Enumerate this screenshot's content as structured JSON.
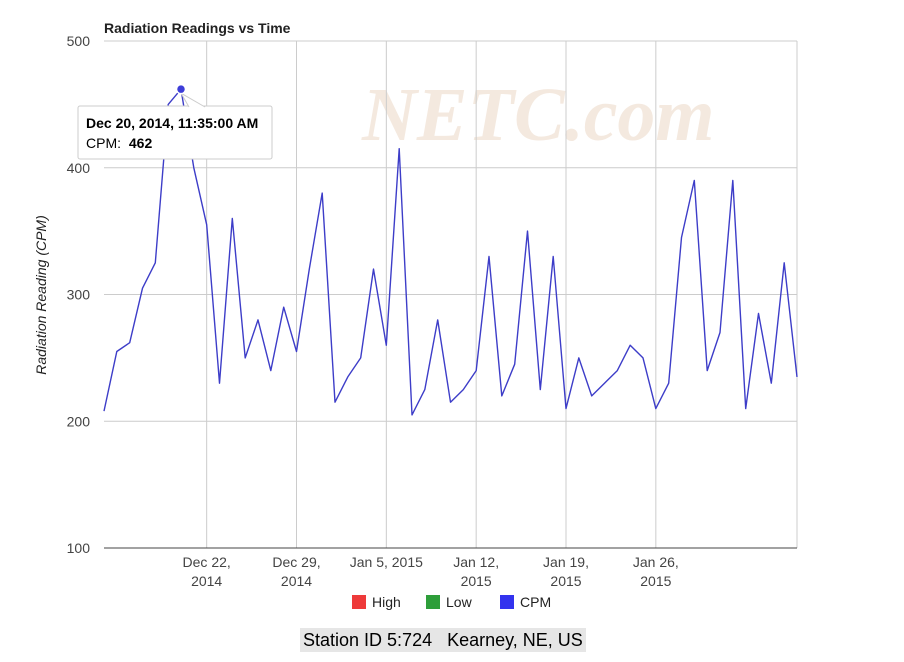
{
  "chart_data": {
    "type": "line",
    "title": "Radiation Readings vs Time",
    "ylabel": "Radiation Reading (CPM)",
    "xlabel": "",
    "ylim": [
      100,
      500
    ],
    "yticks": [
      100,
      200,
      300,
      400,
      500
    ],
    "xlim": [
      "2014-12-14",
      "2015-02-06"
    ],
    "xticks": [
      {
        "date": "2014-12-22",
        "line1": "Dec 22,",
        "line2": "2014"
      },
      {
        "date": "2014-12-29",
        "line1": "Dec 29,",
        "line2": "2014"
      },
      {
        "date": "2015-01-05",
        "line1": "Jan 5, 2015",
        "line2": ""
      },
      {
        "date": "2015-01-12",
        "line1": "Jan 12,",
        "line2": "2015"
      },
      {
        "date": "2015-01-19",
        "line1": "Jan 19,",
        "line2": "2015"
      },
      {
        "date": "2015-01-26",
        "line1": "Jan 26,",
        "line2": "2015"
      }
    ],
    "grid": true,
    "legend": {
      "position": "bottom",
      "entries": [
        {
          "name": "High",
          "color": "#ee3a3a"
        },
        {
          "name": "Low",
          "color": "#2e9e3a"
        },
        {
          "name": "CPM",
          "color": "#3333ee"
        }
      ]
    },
    "series": [
      {
        "name": "CPM",
        "color": "#3d3dc8",
        "x": [
          "2014-12-14",
          "2014-12-15",
          "2014-12-16",
          "2014-12-17",
          "2014-12-18",
          "2014-12-19",
          "2014-12-20",
          "2014-12-21",
          "2014-12-22",
          "2014-12-23",
          "2014-12-24",
          "2014-12-25",
          "2014-12-26",
          "2014-12-27",
          "2014-12-28",
          "2014-12-29",
          "2014-12-30",
          "2014-12-31",
          "2015-01-01",
          "2015-01-02",
          "2015-01-03",
          "2015-01-04",
          "2015-01-05",
          "2015-01-06",
          "2015-01-07",
          "2015-01-08",
          "2015-01-09",
          "2015-01-10",
          "2015-01-11",
          "2015-01-12",
          "2015-01-13",
          "2015-01-14",
          "2015-01-15",
          "2015-01-16",
          "2015-01-17",
          "2015-01-18",
          "2015-01-19",
          "2015-01-20",
          "2015-01-21",
          "2015-01-22",
          "2015-01-23",
          "2015-01-24",
          "2015-01-25",
          "2015-01-26",
          "2015-01-27",
          "2015-01-28",
          "2015-01-29",
          "2015-01-30",
          "2015-01-31",
          "2015-02-01",
          "2015-02-02",
          "2015-02-03",
          "2015-02-04",
          "2015-02-05",
          "2015-02-06"
        ],
        "values": [
          208,
          255,
          262,
          305,
          325,
          450,
          462,
          400,
          355,
          230,
          360,
          250,
          280,
          240,
          290,
          255,
          320,
          380,
          215,
          235,
          250,
          320,
          260,
          415,
          205,
          225,
          280,
          215,
          225,
          240,
          330,
          220,
          245,
          350,
          225,
          330,
          210,
          250,
          220,
          230,
          240,
          260,
          250,
          210,
          230,
          345,
          390,
          240,
          270,
          390,
          210,
          285,
          230,
          325,
          235
        ]
      }
    ],
    "annotations": [
      {
        "text": "NETC.com",
        "kind": "watermark"
      }
    ],
    "tooltip": {
      "point_x": "2014-12-20",
      "point_y": 462,
      "line1": "Dec 20, 2014, 11:35:00 AM",
      "label": "CPM:",
      "value": "462"
    }
  },
  "footer": {
    "station": "Station ID 5:724   Kearney, NE, US"
  }
}
